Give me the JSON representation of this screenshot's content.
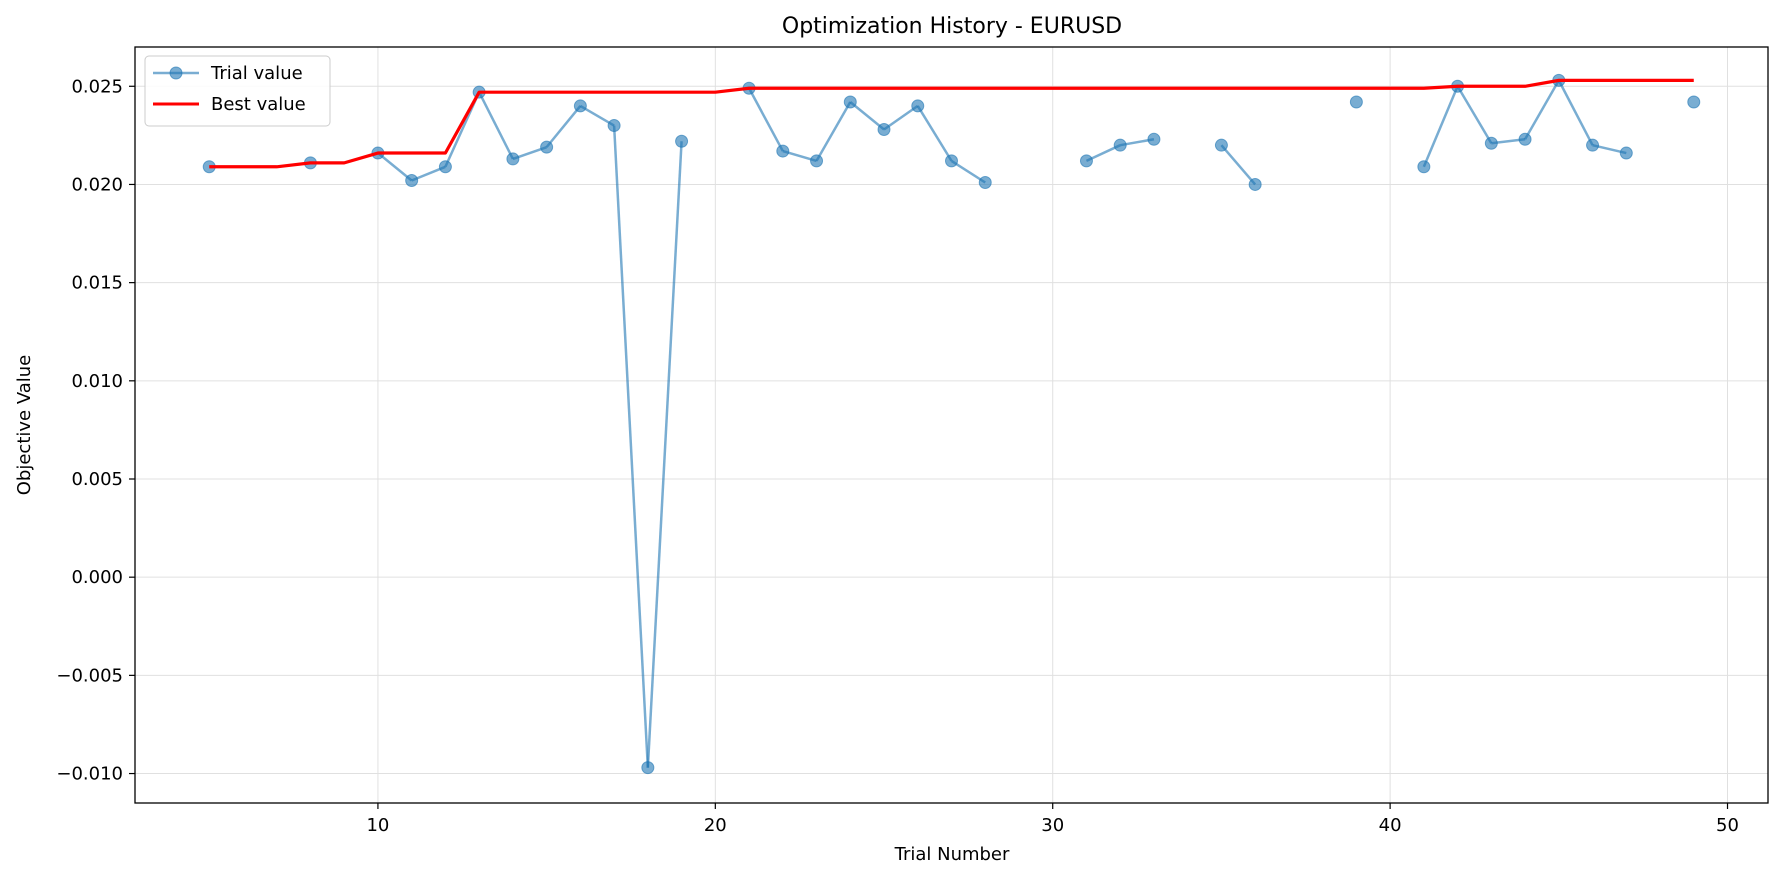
{
  "chart_data": {
    "type": "line",
    "title": "Optimization History - EURUSD",
    "xlabel": "Trial Number",
    "ylabel": "Objective Value",
    "xlim": [
      2.8,
      51.2
    ],
    "ylim": [
      -0.0115,
      0.027
    ],
    "xticks": [
      10,
      20,
      30,
      40,
      50
    ],
    "yticks": [
      -0.01,
      -0.005,
      0.0,
      0.005,
      0.01,
      0.015,
      0.02,
      0.025
    ],
    "ytick_labels": [
      "−0.010",
      "−0.005",
      "0.000",
      "0.005",
      "0.010",
      "0.015",
      "0.020",
      "0.025"
    ],
    "xtick_labels": [
      "10",
      "20",
      "30",
      "40",
      "50"
    ],
    "grid": true,
    "legend_position": "top-left",
    "series": [
      {
        "name": "Trial value",
        "color": "#1f77b4",
        "style": "line-with-markers",
        "x": [
          5,
          8,
          10,
          11,
          12,
          13,
          14,
          15,
          16,
          17,
          18,
          19,
          21,
          22,
          23,
          24,
          25,
          26,
          27,
          28,
          31,
          32,
          33,
          35,
          36,
          39,
          41,
          42,
          43,
          44,
          45,
          46,
          47,
          49
        ],
        "y": [
          0.0209,
          0.0211,
          0.0216,
          0.0202,
          0.0209,
          0.0247,
          0.0213,
          0.0219,
          0.024,
          0.023,
          -0.0097,
          0.0222,
          0.0249,
          0.0217,
          0.0212,
          0.0242,
          0.0228,
          0.024,
          0.0212,
          0.0201,
          0.0212,
          0.022,
          0.0223,
          0.022,
          0.02,
          0.0242,
          0.0209,
          0.025,
          0.0221,
          0.0223,
          0.0253,
          0.022,
          0.0216,
          0.0242
        ]
      },
      {
        "name": "Best value",
        "color": "#ff0000",
        "style": "line",
        "x": [
          5,
          7,
          8,
          9,
          10,
          12,
          13,
          20,
          21,
          41,
          42,
          44,
          45,
          49
        ],
        "y": [
          0.0209,
          0.0209,
          0.0211,
          0.0211,
          0.0216,
          0.0216,
          0.0247,
          0.0247,
          0.0249,
          0.0249,
          0.025,
          0.025,
          0.0253,
          0.0253
        ]
      }
    ]
  }
}
